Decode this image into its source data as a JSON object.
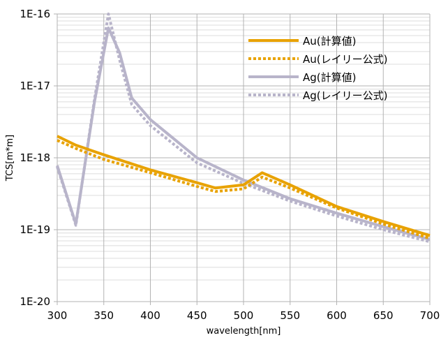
{
  "chart_data": {
    "type": "line",
    "title": "",
    "xlabel": "wavelength[nm]",
    "ylabel": "TCS[m*m]",
    "xlim": [
      300,
      700
    ],
    "ylim": [
      1e-20,
      1e-16
    ],
    "yscale": "log",
    "grid": true,
    "legend_position": "top-right",
    "x_ticks": [
      "300",
      "350",
      "400",
      "450",
      "500",
      "550",
      "600",
      "650",
      "700"
    ],
    "y_ticks": [
      "1E-16",
      "1E-17",
      "1E-18",
      "1E-19",
      "1E-20"
    ],
    "series": [
      {
        "name": "Au(計算値)",
        "style": "solid",
        "color": "#E8A202",
        "x": [
          300,
          320,
          350,
          400,
          450,
          470,
          500,
          520,
          550,
          600,
          650,
          700
        ],
        "y": [
          2e-18,
          1.5e-18,
          1.1e-18,
          6.8e-19,
          4.5e-19,
          3.8e-19,
          4.2e-19,
          6.2e-19,
          4.2e-19,
          2.1e-19,
          1.3e-19,
          8.3e-20
        ]
      },
      {
        "name": "Au(レイリー公式)",
        "style": "dotted",
        "color": "#E8A202",
        "x": [
          300,
          320,
          350,
          400,
          450,
          470,
          500,
          520,
          550,
          600,
          650,
          700
        ],
        "y": [
          1.75e-18,
          1.35e-18,
          9.5e-19,
          6.2e-19,
          4e-19,
          3.4e-19,
          3.7e-19,
          5.4e-19,
          3.8e-19,
          2e-19,
          1.2e-19,
          7.6e-20
        ]
      },
      {
        "name": "Ag(計算値)",
        "style": "solid",
        "color": "#B8B4CA",
        "x": [
          300,
          320,
          340,
          355,
          367,
          380,
          400,
          450,
          500,
          550,
          600,
          650,
          700
        ],
        "y": [
          7.8e-19,
          1.2e-19,
          6e-18,
          6.4e-17,
          2.9e-17,
          6.8e-18,
          3.4e-18,
          1e-18,
          4.9e-19,
          2.7e-19,
          1.7e-19,
          1.1e-19,
          7.3e-20
        ]
      },
      {
        "name": "Ag(レイリー公式)",
        "style": "dotted",
        "color": "#B8B4CA",
        "x": [
          300,
          320,
          340,
          355,
          367,
          380,
          400,
          450,
          500,
          550,
          600,
          650,
          700
        ],
        "y": [
          7.5e-19,
          1.15e-19,
          6.5e-18,
          1e-16,
          2.3e-17,
          5.5e-18,
          2.8e-18,
          8.5e-19,
          4.4e-19,
          2.5e-19,
          1.55e-19,
          1e-19,
          6.8e-20
        ]
      }
    ]
  }
}
